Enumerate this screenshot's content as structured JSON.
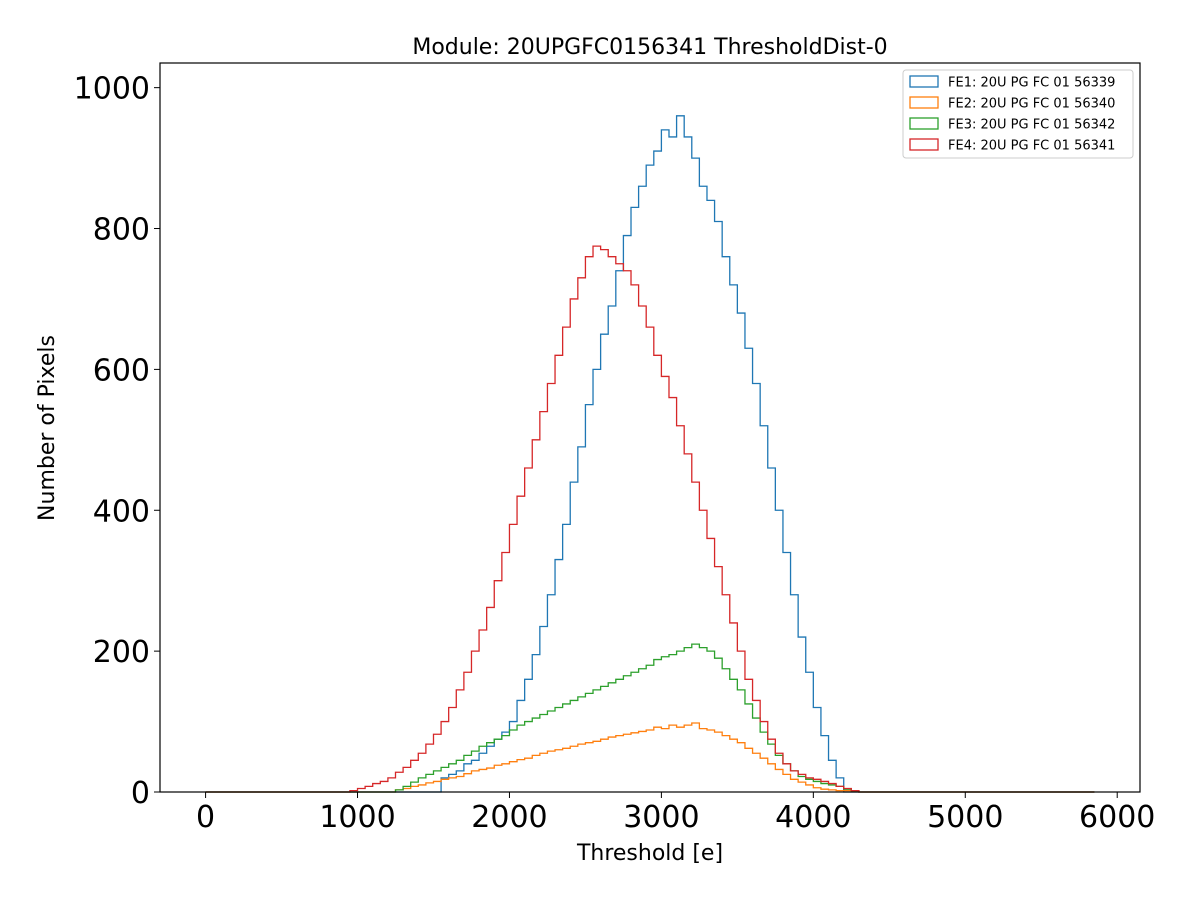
{
  "chart_data": {
    "type": "histogram-step",
    "title": "Module: 20UPGFC0156341 ThresholdDist-0",
    "xlabel": "Threshold [e]",
    "ylabel": "Number of Pixels",
    "xlim": [
      -300,
      6150
    ],
    "ylim": [
      0,
      1035
    ],
    "xticks": [
      0,
      1000,
      2000,
      3000,
      4000,
      5000,
      6000
    ],
    "xtick_labels": [
      "0",
      "1000",
      "2000",
      "3000",
      "4000",
      "5000",
      "6000"
    ],
    "yticks": [
      0,
      200,
      400,
      600,
      800,
      1000
    ],
    "ytick_labels": [
      "0",
      "200",
      "400",
      "600",
      "800",
      "1000"
    ],
    "x_start": 0,
    "x_end": 5850,
    "bin_width": 50,
    "legend_position": "top-right",
    "series": [
      {
        "name": "FE1: 20U PG FC 01 56339",
        "color": "#1f77b4",
        "bins": [
          [
            1500,
            0
          ],
          [
            1550,
            20
          ],
          [
            1600,
            25
          ],
          [
            1650,
            30
          ],
          [
            1700,
            40
          ],
          [
            1750,
            45
          ],
          [
            1800,
            55
          ],
          [
            1850,
            65
          ],
          [
            1900,
            75
          ],
          [
            1950,
            85
          ],
          [
            2000,
            100
          ],
          [
            2050,
            130
          ],
          [
            2100,
            160
          ],
          [
            2150,
            195
          ],
          [
            2200,
            235
          ],
          [
            2250,
            280
          ],
          [
            2300,
            330
          ],
          [
            2350,
            380
          ],
          [
            2400,
            440
          ],
          [
            2450,
            490
          ],
          [
            2500,
            550
          ],
          [
            2550,
            600
          ],
          [
            2600,
            650
          ],
          [
            2650,
            690
          ],
          [
            2700,
            740
          ],
          [
            2750,
            790
          ],
          [
            2800,
            830
          ],
          [
            2850,
            860
          ],
          [
            2900,
            890
          ],
          [
            2950,
            910
          ],
          [
            3000,
            940
          ],
          [
            3050,
            930
          ],
          [
            3100,
            960
          ],
          [
            3150,
            930
          ],
          [
            3200,
            900
          ],
          [
            3250,
            860
          ],
          [
            3300,
            840
          ],
          [
            3350,
            810
          ],
          [
            3400,
            760
          ],
          [
            3450,
            720
          ],
          [
            3500,
            680
          ],
          [
            3550,
            630
          ],
          [
            3600,
            580
          ],
          [
            3650,
            520
          ],
          [
            3700,
            460
          ],
          [
            3750,
            400
          ],
          [
            3800,
            340
          ],
          [
            3850,
            280
          ],
          [
            3900,
            220
          ],
          [
            3950,
            170
          ],
          [
            4000,
            120
          ],
          [
            4050,
            80
          ],
          [
            4100,
            45
          ],
          [
            4150,
            20
          ]
        ]
      },
      {
        "name": "FE2: 20U PG FC 01 56340",
        "color": "#ff7f0e",
        "bins": [
          [
            1200,
            0
          ],
          [
            1250,
            3
          ],
          [
            1300,
            5
          ],
          [
            1350,
            8
          ],
          [
            1400,
            10
          ],
          [
            1450,
            13
          ],
          [
            1500,
            15
          ],
          [
            1550,
            18
          ],
          [
            1600,
            20
          ],
          [
            1650,
            22
          ],
          [
            1700,
            26
          ],
          [
            1750,
            30
          ],
          [
            1800,
            32
          ],
          [
            1850,
            34
          ],
          [
            1900,
            38
          ],
          [
            1950,
            40
          ],
          [
            2000,
            43
          ],
          [
            2050,
            46
          ],
          [
            2100,
            48
          ],
          [
            2150,
            52
          ],
          [
            2200,
            55
          ],
          [
            2250,
            58
          ],
          [
            2300,
            60
          ],
          [
            2350,
            62
          ],
          [
            2400,
            65
          ],
          [
            2450,
            68
          ],
          [
            2500,
            70
          ],
          [
            2550,
            72
          ],
          [
            2600,
            75
          ],
          [
            2650,
            78
          ],
          [
            2700,
            80
          ],
          [
            2750,
            82
          ],
          [
            2800,
            84
          ],
          [
            2850,
            86
          ],
          [
            2900,
            88
          ],
          [
            2950,
            92
          ],
          [
            3000,
            90
          ],
          [
            3050,
            95
          ],
          [
            3100,
            92
          ],
          [
            3150,
            95
          ],
          [
            3200,
            98
          ],
          [
            3250,
            90
          ],
          [
            3300,
            88
          ],
          [
            3350,
            85
          ],
          [
            3400,
            80
          ],
          [
            3450,
            75
          ],
          [
            3500,
            70
          ],
          [
            3550,
            62
          ],
          [
            3600,
            55
          ],
          [
            3650,
            48
          ],
          [
            3700,
            40
          ],
          [
            3750,
            32
          ],
          [
            3800,
            25
          ],
          [
            3850,
            18
          ],
          [
            3900,
            14
          ],
          [
            3950,
            10
          ],
          [
            4000,
            6
          ],
          [
            4050,
            4
          ],
          [
            4100,
            3
          ],
          [
            4150,
            2
          ],
          [
            4200,
            2
          ],
          [
            4250,
            1
          ]
        ]
      },
      {
        "name": "FE3: 20U PG FC 01 56342",
        "color": "#2ca02c",
        "bins": [
          [
            1200,
            0
          ],
          [
            1250,
            3
          ],
          [
            1300,
            8
          ],
          [
            1350,
            14
          ],
          [
            1400,
            20
          ],
          [
            1450,
            25
          ],
          [
            1500,
            30
          ],
          [
            1550,
            35
          ],
          [
            1600,
            40
          ],
          [
            1650,
            45
          ],
          [
            1700,
            52
          ],
          [
            1750,
            58
          ],
          [
            1800,
            65
          ],
          [
            1850,
            70
          ],
          [
            1900,
            75
          ],
          [
            1950,
            80
          ],
          [
            2000,
            88
          ],
          [
            2050,
            95
          ],
          [
            2100,
            100
          ],
          [
            2150,
            105
          ],
          [
            2200,
            110
          ],
          [
            2250,
            115
          ],
          [
            2300,
            120
          ],
          [
            2350,
            125
          ],
          [
            2400,
            130
          ],
          [
            2450,
            135
          ],
          [
            2500,
            140
          ],
          [
            2550,
            145
          ],
          [
            2600,
            150
          ],
          [
            2650,
            155
          ],
          [
            2700,
            160
          ],
          [
            2750,
            165
          ],
          [
            2800,
            170
          ],
          [
            2850,
            175
          ],
          [
            2900,
            180
          ],
          [
            2950,
            188
          ],
          [
            3000,
            192
          ],
          [
            3050,
            195
          ],
          [
            3100,
            200
          ],
          [
            3150,
            205
          ],
          [
            3200,
            210
          ],
          [
            3250,
            205
          ],
          [
            3300,
            200
          ],
          [
            3350,
            190
          ],
          [
            3400,
            175
          ],
          [
            3450,
            160
          ],
          [
            3500,
            145
          ],
          [
            3550,
            125
          ],
          [
            3600,
            105
          ],
          [
            3650,
            85
          ],
          [
            3700,
            68
          ],
          [
            3750,
            52
          ],
          [
            3800,
            40
          ],
          [
            3850,
            30
          ],
          [
            3900,
            22
          ],
          [
            3950,
            18
          ],
          [
            4000,
            15
          ],
          [
            4050,
            12
          ],
          [
            4100,
            10
          ],
          [
            4150,
            8
          ],
          [
            4200,
            4
          ],
          [
            4250,
            2
          ]
        ]
      },
      {
        "name": "FE4: 20U PG FC 01 56341",
        "color": "#d62728",
        "bins": [
          [
            900,
            0
          ],
          [
            950,
            2
          ],
          [
            1000,
            5
          ],
          [
            1050,
            8
          ],
          [
            1100,
            12
          ],
          [
            1150,
            15
          ],
          [
            1200,
            20
          ],
          [
            1250,
            28
          ],
          [
            1300,
            35
          ],
          [
            1350,
            45
          ],
          [
            1400,
            55
          ],
          [
            1450,
            68
          ],
          [
            1500,
            82
          ],
          [
            1550,
            100
          ],
          [
            1600,
            120
          ],
          [
            1650,
            145
          ],
          [
            1700,
            170
          ],
          [
            1750,
            200
          ],
          [
            1800,
            230
          ],
          [
            1850,
            262
          ],
          [
            1900,
            300
          ],
          [
            1950,
            340
          ],
          [
            2000,
            380
          ],
          [
            2050,
            420
          ],
          [
            2100,
            460
          ],
          [
            2150,
            500
          ],
          [
            2200,
            540
          ],
          [
            2250,
            580
          ],
          [
            2300,
            620
          ],
          [
            2350,
            660
          ],
          [
            2400,
            700
          ],
          [
            2450,
            730
          ],
          [
            2500,
            760
          ],
          [
            2550,
            775
          ],
          [
            2600,
            770
          ],
          [
            2650,
            760
          ],
          [
            2700,
            750
          ],
          [
            2750,
            740
          ],
          [
            2800,
            720
          ],
          [
            2850,
            690
          ],
          [
            2900,
            660
          ],
          [
            2950,
            620
          ],
          [
            3000,
            590
          ],
          [
            3050,
            560
          ],
          [
            3100,
            520
          ],
          [
            3150,
            480
          ],
          [
            3200,
            440
          ],
          [
            3250,
            400
          ],
          [
            3300,
            360
          ],
          [
            3350,
            320
          ],
          [
            3400,
            280
          ],
          [
            3450,
            240
          ],
          [
            3500,
            200
          ],
          [
            3550,
            160
          ],
          [
            3600,
            130
          ],
          [
            3650,
            100
          ],
          [
            3700,
            75
          ],
          [
            3750,
            55
          ],
          [
            3800,
            40
          ],
          [
            3850,
            30
          ],
          [
            3900,
            25
          ],
          [
            3950,
            20
          ],
          [
            4000,
            18
          ],
          [
            4050,
            15
          ],
          [
            4100,
            12
          ],
          [
            4150,
            8
          ],
          [
            4200,
            5
          ],
          [
            4250,
            2
          ]
        ]
      }
    ]
  }
}
